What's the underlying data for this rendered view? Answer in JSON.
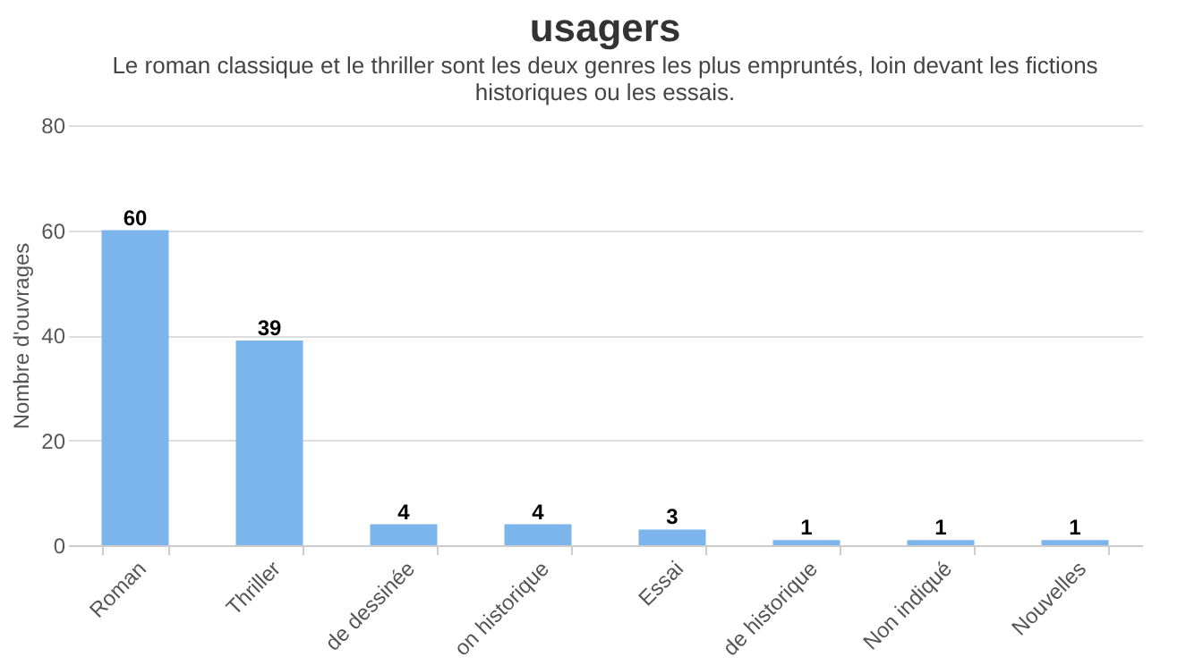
{
  "chart_data": {
    "type": "bar",
    "title": "usagers",
    "subtitle": [
      "Le roman classique et le thriller sont les deux genres les plus empruntés, loin devant les fictions",
      "historiques ou les essais."
    ],
    "ylabel": "Nombre d'ouvrages",
    "categories": [
      "Roman",
      "Thriller",
      "de dessinée",
      "on historique",
      "Essai",
      "de historique",
      "Non indiqué",
      "Nouvelles"
    ],
    "values": [
      60,
      39,
      4,
      4,
      3,
      1,
      1,
      1
    ],
    "color": "#7cb5ec",
    "ylim": [
      0,
      80
    ],
    "yticks": [
      0,
      20,
      40,
      60,
      80
    ],
    "grid": "y",
    "data_labels": true
  }
}
